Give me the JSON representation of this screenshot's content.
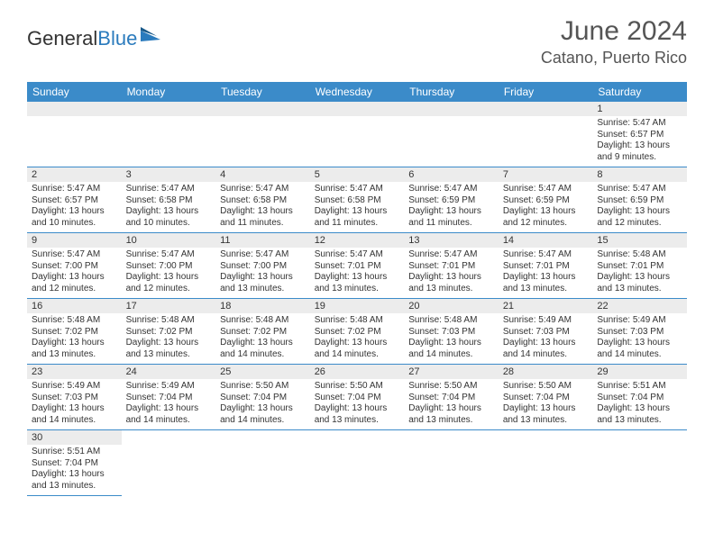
{
  "brand": {
    "text1": "General",
    "text2": "Blue"
  },
  "header": {
    "month": "June 2024",
    "location": "Catano, Puerto Rico"
  },
  "colors": {
    "headerBar": "#3b8bc9",
    "dayNumBg": "#ececec",
    "rowBorder": "#3b8bc9",
    "brandBlue": "#2b7bbd"
  },
  "weekdays": [
    "Sunday",
    "Monday",
    "Tuesday",
    "Wednesday",
    "Thursday",
    "Friday",
    "Saturday"
  ],
  "startOffset": 6,
  "days": [
    {
      "n": 1,
      "sunrise": "5:47 AM",
      "sunset": "6:57 PM",
      "daylight": "13 hours and 9 minutes."
    },
    {
      "n": 2,
      "sunrise": "5:47 AM",
      "sunset": "6:57 PM",
      "daylight": "13 hours and 10 minutes."
    },
    {
      "n": 3,
      "sunrise": "5:47 AM",
      "sunset": "6:58 PM",
      "daylight": "13 hours and 10 minutes."
    },
    {
      "n": 4,
      "sunrise": "5:47 AM",
      "sunset": "6:58 PM",
      "daylight": "13 hours and 11 minutes."
    },
    {
      "n": 5,
      "sunrise": "5:47 AM",
      "sunset": "6:58 PM",
      "daylight": "13 hours and 11 minutes."
    },
    {
      "n": 6,
      "sunrise": "5:47 AM",
      "sunset": "6:59 PM",
      "daylight": "13 hours and 11 minutes."
    },
    {
      "n": 7,
      "sunrise": "5:47 AM",
      "sunset": "6:59 PM",
      "daylight": "13 hours and 12 minutes."
    },
    {
      "n": 8,
      "sunrise": "5:47 AM",
      "sunset": "6:59 PM",
      "daylight": "13 hours and 12 minutes."
    },
    {
      "n": 9,
      "sunrise": "5:47 AM",
      "sunset": "7:00 PM",
      "daylight": "13 hours and 12 minutes."
    },
    {
      "n": 10,
      "sunrise": "5:47 AM",
      "sunset": "7:00 PM",
      "daylight": "13 hours and 12 minutes."
    },
    {
      "n": 11,
      "sunrise": "5:47 AM",
      "sunset": "7:00 PM",
      "daylight": "13 hours and 13 minutes."
    },
    {
      "n": 12,
      "sunrise": "5:47 AM",
      "sunset": "7:01 PM",
      "daylight": "13 hours and 13 minutes."
    },
    {
      "n": 13,
      "sunrise": "5:47 AM",
      "sunset": "7:01 PM",
      "daylight": "13 hours and 13 minutes."
    },
    {
      "n": 14,
      "sunrise": "5:47 AM",
      "sunset": "7:01 PM",
      "daylight": "13 hours and 13 minutes."
    },
    {
      "n": 15,
      "sunrise": "5:48 AM",
      "sunset": "7:01 PM",
      "daylight": "13 hours and 13 minutes."
    },
    {
      "n": 16,
      "sunrise": "5:48 AM",
      "sunset": "7:02 PM",
      "daylight": "13 hours and 13 minutes."
    },
    {
      "n": 17,
      "sunrise": "5:48 AM",
      "sunset": "7:02 PM",
      "daylight": "13 hours and 13 minutes."
    },
    {
      "n": 18,
      "sunrise": "5:48 AM",
      "sunset": "7:02 PM",
      "daylight": "13 hours and 14 minutes."
    },
    {
      "n": 19,
      "sunrise": "5:48 AM",
      "sunset": "7:02 PM",
      "daylight": "13 hours and 14 minutes."
    },
    {
      "n": 20,
      "sunrise": "5:48 AM",
      "sunset": "7:03 PM",
      "daylight": "13 hours and 14 minutes."
    },
    {
      "n": 21,
      "sunrise": "5:49 AM",
      "sunset": "7:03 PM",
      "daylight": "13 hours and 14 minutes."
    },
    {
      "n": 22,
      "sunrise": "5:49 AM",
      "sunset": "7:03 PM",
      "daylight": "13 hours and 14 minutes."
    },
    {
      "n": 23,
      "sunrise": "5:49 AM",
      "sunset": "7:03 PM",
      "daylight": "13 hours and 14 minutes."
    },
    {
      "n": 24,
      "sunrise": "5:49 AM",
      "sunset": "7:04 PM",
      "daylight": "13 hours and 14 minutes."
    },
    {
      "n": 25,
      "sunrise": "5:50 AM",
      "sunset": "7:04 PM",
      "daylight": "13 hours and 14 minutes."
    },
    {
      "n": 26,
      "sunrise": "5:50 AM",
      "sunset": "7:04 PM",
      "daylight": "13 hours and 13 minutes."
    },
    {
      "n": 27,
      "sunrise": "5:50 AM",
      "sunset": "7:04 PM",
      "daylight": "13 hours and 13 minutes."
    },
    {
      "n": 28,
      "sunrise": "5:50 AM",
      "sunset": "7:04 PM",
      "daylight": "13 hours and 13 minutes."
    },
    {
      "n": 29,
      "sunrise": "5:51 AM",
      "sunset": "7:04 PM",
      "daylight": "13 hours and 13 minutes."
    },
    {
      "n": 30,
      "sunrise": "5:51 AM",
      "sunset": "7:04 PM",
      "daylight": "13 hours and 13 minutes."
    }
  ],
  "labels": {
    "sunrise": "Sunrise:",
    "sunset": "Sunset:",
    "daylight": "Daylight:"
  }
}
